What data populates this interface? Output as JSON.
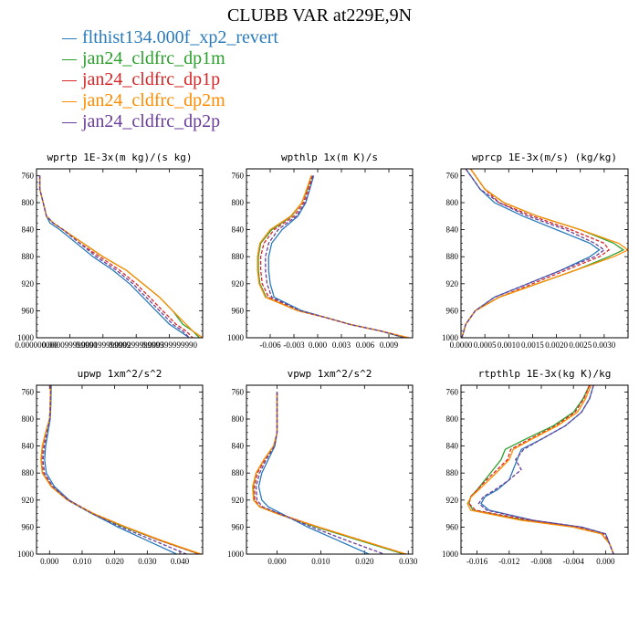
{
  "title": "CLUBB VAR at229E,9N",
  "colors": {
    "flthist": "#2b7bbb",
    "dp1m": "#2ca02c",
    "dp1p": "#d62728",
    "dp2m": "#ff8c00",
    "dp2p": "#6a3d9a"
  },
  "legend": [
    {
      "label": "flthist134.000f_xp2_revert",
      "color": "#2b7bbb"
    },
    {
      "label": "jan24_cldfrc_dp1m",
      "color": "#2ca02c"
    },
    {
      "label": "jan24_cldfrc_dp1p",
      "color": "#d62728"
    },
    {
      "label": "jan24_cldfrc_dp2m",
      "color": "#ff8c00"
    },
    {
      "label": "jan24_cldfrc_dp2p",
      "color": "#6a3d9a"
    }
  ],
  "chart_data": [
    {
      "type": "line",
      "title": "wprtp  1E-3x(m kg)/(s kg)",
      "xlim": [
        0.0,
        0.0005
      ],
      "ylim": [
        1000,
        750
      ],
      "y_ticks": [
        760,
        800,
        840,
        880,
        920,
        960,
        1000
      ],
      "x_ticks": [
        0.0,
        0.0001,
        0.0002,
        0.0003,
        0.0004
      ],
      "x_tick_labels": [
        "0.000000000",
        "0.000099999990",
        "0.000199999999",
        "0.000299999999",
        "0.000399999990"
      ],
      "y": [
        760,
        780,
        800,
        820,
        830,
        840,
        860,
        880,
        900,
        920,
        940,
        960,
        980,
        990,
        1000
      ],
      "series": [
        {
          "name": "flthist134.000f_xp2_revert",
          "color": "#2b7bbb",
          "dash": "solid",
          "x": [
            1e-05,
            1e-05,
            2e-05,
            3e-05,
            4e-05,
            7e-05,
            0.00012,
            0.00017,
            0.00023,
            0.00028,
            0.00032,
            0.00036,
            0.0004,
            0.00043,
            0.00046
          ]
        },
        {
          "name": "jan24_cldfrc_dp1m",
          "color": "#2ca02c",
          "dash": "solid",
          "x": [
            1e-05,
            1e-05,
            2e-05,
            3e-05,
            5e-05,
            8e-05,
            0.00014,
            0.0002,
            0.00027,
            0.00032,
            0.00037,
            0.00041,
            0.00044,
            0.00047,
            0.00049
          ]
        },
        {
          "name": "jan24_cldfrc_dp1p",
          "color": "#d62728",
          "dash": "dashed",
          "x": [
            1e-05,
            1e-05,
            2e-05,
            3e-05,
            5e-05,
            8e-05,
            0.00013,
            0.00019,
            0.00025,
            0.0003,
            0.00034,
            0.00038,
            0.00042,
            0.00045,
            0.00047
          ]
        },
        {
          "name": "jan24_cldfrc_dp2m",
          "color": "#ff8c00",
          "dash": "solid",
          "x": [
            1e-05,
            1e-05,
            2e-05,
            3e-05,
            5e-05,
            8e-05,
            0.00014,
            0.0002,
            0.00027,
            0.00032,
            0.00037,
            0.00041,
            0.00045,
            0.00047,
            0.0005
          ]
        },
        {
          "name": "jan24_cldfrc_dp2p",
          "color": "#6a3d9a",
          "dash": "dashed",
          "x": [
            1e-05,
            1e-05,
            2e-05,
            3e-05,
            5e-05,
            8e-05,
            0.00013,
            0.00018,
            0.00024,
            0.00029,
            0.00033,
            0.00037,
            0.00041,
            0.00044,
            0.00046
          ]
        }
      ]
    },
    {
      "type": "line",
      "title": "wpthlp  1x(m K)/s",
      "xlim": [
        -0.009,
        0.012
      ],
      "ylim": [
        1000,
        750
      ],
      "y_ticks": [
        760,
        800,
        840,
        880,
        920,
        960,
        1000
      ],
      "x_ticks": [
        -0.006,
        -0.003,
        0.0,
        0.003,
        0.006,
        0.009
      ],
      "x_tick_labels": [
        "-0.006",
        "-0.003",
        "0.000",
        "0.003",
        "0.006",
        "0.009"
      ],
      "y": [
        760,
        780,
        800,
        820,
        840,
        860,
        880,
        900,
        920,
        940,
        960,
        970,
        980,
        990,
        1000
      ],
      "series": [
        {
          "name": "flthist134.000f_xp2_revert",
          "color": "#2b7bbb",
          "dash": "solid",
          "x": [
            -0.0005,
            -0.001,
            -0.0015,
            -0.0025,
            -0.0045,
            -0.0058,
            -0.0062,
            -0.0062,
            -0.006,
            -0.0055,
            -0.002,
            0.001,
            0.004,
            0.008,
            0.011
          ]
        },
        {
          "name": "jan24_cldfrc_dp1m",
          "color": "#2ca02c",
          "dash": "solid",
          "x": [
            -0.0008,
            -0.0013,
            -0.002,
            -0.0033,
            -0.0058,
            -0.0072,
            -0.0075,
            -0.0075,
            -0.0073,
            -0.0065,
            -0.0025,
            0.001,
            0.004,
            0.008,
            0.011
          ]
        },
        {
          "name": "jan24_cldfrc_dp1p",
          "color": "#d62728",
          "dash": "dashed",
          "x": [
            -0.0007,
            -0.0012,
            -0.0018,
            -0.003,
            -0.0055,
            -0.0068,
            -0.0072,
            -0.0072,
            -0.007,
            -0.0062,
            -0.0024,
            0.001,
            0.004,
            0.008,
            0.0115
          ]
        },
        {
          "name": "jan24_cldfrc_dp2m",
          "color": "#ff8c00",
          "dash": "solid",
          "x": [
            -0.0008,
            -0.0014,
            -0.002,
            -0.0034,
            -0.006,
            -0.0073,
            -0.0076,
            -0.0076,
            -0.0074,
            -0.0066,
            -0.0025,
            0.001,
            0.004,
            0.008,
            0.0115
          ]
        },
        {
          "name": "jan24_cldfrc_dp2p",
          "color": "#6a3d9a",
          "dash": "dashed",
          "x": [
            -0.0006,
            -0.001,
            -0.0016,
            -0.0027,
            -0.005,
            -0.0062,
            -0.0066,
            -0.0066,
            -0.0064,
            -0.0058,
            -0.0022,
            0.001,
            0.004,
            0.008,
            0.011
          ]
        }
      ]
    },
    {
      "type": "line",
      "title": "wprcp  1E-3x(m/s) (kg/kg)",
      "xlim": [
        0.0,
        0.0035
      ],
      "ylim": [
        1000,
        750
      ],
      "y_ticks": [
        760,
        800,
        840,
        880,
        920,
        960,
        1000
      ],
      "x_ticks": [
        0.0,
        0.0005,
        0.001,
        0.0015,
        0.002,
        0.0025,
        0.003
      ],
      "x_tick_labels": [
        "0.0000",
        "0.0005",
        "0.0010",
        "0.0015",
        "0.0020",
        "0.0025",
        "0.0030"
      ],
      "y": [
        750,
        760,
        780,
        800,
        820,
        840,
        860,
        870,
        880,
        900,
        920,
        940,
        960,
        980,
        1000
      ],
      "series": [
        {
          "name": "flthist134.000f_xp2_revert",
          "color": "#2b7bbb",
          "dash": "solid",
          "x": [
            0.0001,
            0.0002,
            0.0004,
            0.0007,
            0.0013,
            0.002,
            0.0027,
            0.0029,
            0.0027,
            0.0021,
            0.0014,
            0.0007,
            0.0003,
            0.0001,
            2e-05
          ]
        },
        {
          "name": "jan24_cldfrc_dp1m",
          "color": "#2ca02c",
          "dash": "solid",
          "x": [
            0.0002,
            0.0003,
            0.0005,
            0.0009,
            0.0016,
            0.0025,
            0.0032,
            0.0034,
            0.0031,
            0.0024,
            0.0016,
            0.0008,
            0.0003,
            0.0001,
            2e-05
          ]
        },
        {
          "name": "jan24_cldfrc_dp1p",
          "color": "#d62728",
          "dash": "dashed",
          "x": [
            0.0002,
            0.0003,
            0.0005,
            0.0008,
            0.0015,
            0.0023,
            0.003,
            0.0031,
            0.0029,
            0.0022,
            0.0015,
            0.0008,
            0.0003,
            0.0001,
            2e-05
          ]
        },
        {
          "name": "jan24_cldfrc_dp2m",
          "color": "#ff8c00",
          "dash": "solid",
          "x": [
            0.0002,
            0.0003,
            0.0005,
            0.0009,
            0.0016,
            0.0025,
            0.0033,
            0.0035,
            0.0032,
            0.0024,
            0.0016,
            0.0008,
            0.0003,
            0.0001,
            2e-05
          ]
        },
        {
          "name": "jan24_cldfrc_dp2p",
          "color": "#6a3d9a",
          "dash": "dashed",
          "x": [
            0.0001,
            0.0002,
            0.0004,
            0.0008,
            0.0014,
            0.0022,
            0.0028,
            0.003,
            0.0028,
            0.0021,
            0.0014,
            0.0007,
            0.0003,
            0.0001,
            2e-05
          ]
        }
      ]
    },
    {
      "type": "line",
      "title": "upwp  1xm^2/s^2",
      "xlim": [
        -0.004,
        0.047
      ],
      "ylim": [
        1000,
        750
      ],
      "y_ticks": [
        760,
        800,
        840,
        880,
        920,
        960,
        1000
      ],
      "x_ticks": [
        0.0,
        0.01,
        0.02,
        0.03,
        0.04
      ],
      "x_tick_labels": [
        "0.000",
        "0.010",
        "0.020",
        "0.030",
        "0.040"
      ],
      "y": [
        750,
        780,
        800,
        820,
        840,
        860,
        880,
        900,
        920,
        940,
        960,
        980,
        1000
      ],
      "series": [
        {
          "name": "flthist134.000f_xp2_revert",
          "color": "#2b7bbb",
          "dash": "solid",
          "x": [
            0.0005,
            0.0004,
            0.0002,
            -0.0005,
            -0.0012,
            -0.0015,
            -0.001,
            0.0015,
            0.006,
            0.013,
            0.021,
            0.03,
            0.039
          ]
        },
        {
          "name": "jan24_cldfrc_dp1m",
          "color": "#2ca02c",
          "dash": "solid",
          "x": [
            0.0003,
            0.0002,
            0.0,
            -0.0012,
            -0.0022,
            -0.0026,
            -0.0022,
            0.0005,
            0.0055,
            0.013,
            0.023,
            0.034,
            0.046
          ]
        },
        {
          "name": "jan24_cldfrc_dp1p",
          "color": "#d62728",
          "dash": "dashed",
          "x": [
            0.0003,
            0.0002,
            0.0,
            -0.001,
            -0.002,
            -0.0024,
            -0.002,
            0.0008,
            0.0058,
            0.0135,
            0.0235,
            0.034,
            0.046
          ]
        },
        {
          "name": "jan24_cldfrc_dp2m",
          "color": "#ff8c00",
          "dash": "solid",
          "x": [
            0.0003,
            0.0002,
            0.0,
            -0.0012,
            -0.0022,
            -0.0026,
            -0.0022,
            0.0005,
            0.0055,
            0.0135,
            0.0235,
            0.0345,
            0.0465
          ]
        },
        {
          "name": "jan24_cldfrc_dp2p",
          "color": "#6a3d9a",
          "dash": "dashed",
          "x": [
            0.0004,
            0.0003,
            0.0001,
            -0.0008,
            -0.0016,
            -0.002,
            -0.0016,
            0.001,
            0.0057,
            0.013,
            0.022,
            0.032,
            0.042
          ]
        }
      ]
    },
    {
      "type": "line",
      "title": "vpwp  1xm^2/s^2",
      "xlim": [
        -0.007,
        0.031
      ],
      "ylim": [
        1000,
        750
      ],
      "y_ticks": [
        760,
        800,
        840,
        880,
        920,
        960,
        1000
      ],
      "x_ticks": [
        0.0,
        0.01,
        0.02,
        0.03
      ],
      "x_tick_labels": [
        "0.000",
        "0.010",
        "0.020",
        "0.030"
      ],
      "y": [
        760,
        780,
        800,
        820,
        840,
        860,
        880,
        900,
        920,
        930,
        940,
        960,
        980,
        1000
      ],
      "series": [
        {
          "name": "flthist134.000f_xp2_revert",
          "color": "#2b7bbb",
          "dash": "solid",
          "x": [
            0.0,
            0.0,
            0.0,
            0.0,
            -0.0005,
            -0.002,
            -0.0035,
            -0.0042,
            -0.0035,
            -0.002,
            0.001,
            0.007,
            0.014,
            0.021
          ]
        },
        {
          "name": "jan24_cldfrc_dp1m",
          "color": "#2ca02c",
          "dash": "solid",
          "x": [
            0.0,
            0.0,
            0.0,
            0.0,
            -0.0008,
            -0.003,
            -0.0048,
            -0.0055,
            -0.0053,
            -0.004,
            0.0,
            0.009,
            0.019,
            0.029
          ]
        },
        {
          "name": "jan24_cldfrc_dp1p",
          "color": "#d62728",
          "dash": "dashed",
          "x": [
            0.0,
            0.0,
            0.0,
            0.0,
            -0.0007,
            -0.0028,
            -0.0045,
            -0.0052,
            -0.0051,
            -0.0038,
            0.0003,
            0.0095,
            0.0195,
            0.0295
          ]
        },
        {
          "name": "jan24_cldfrc_dp2m",
          "color": "#ff8c00",
          "dash": "solid",
          "x": [
            0.0,
            0.0,
            0.0,
            0.0,
            -0.0008,
            -0.003,
            -0.0048,
            -0.0056,
            -0.0054,
            -0.004,
            0.0,
            0.0095,
            0.0195,
            0.0295
          ]
        },
        {
          "name": "jan24_cldfrc_dp2p",
          "color": "#6a3d9a",
          "dash": "dashed",
          "x": [
            0.0,
            0.0,
            0.0,
            0.0,
            -0.0006,
            -0.0025,
            -0.004,
            -0.0048,
            -0.0046,
            -0.0033,
            0.0005,
            0.008,
            0.016,
            0.0245
          ]
        }
      ]
    },
    {
      "type": "line",
      "title": "rtpthlp  1E-3x(kg K)/kg",
      "xlim": [
        -0.018,
        0.0028
      ],
      "ylim": [
        1000,
        750
      ],
      "y_ticks": [
        760,
        800,
        840,
        880,
        920,
        960,
        1000
      ],
      "x_ticks": [
        -0.016,
        -0.012,
        -0.008,
        -0.004,
        0.0
      ],
      "x_tick_labels": [
        "-0.016",
        "-0.012",
        "-0.008",
        "-0.004",
        "0.000"
      ],
      "y": [
        750,
        770,
        790,
        810,
        830,
        845,
        860,
        875,
        890,
        905,
        915,
        925,
        935,
        950,
        960,
        970,
        985,
        1000
      ],
      "series": [
        {
          "name": "flthist134.000f_xp2_revert",
          "color": "#2b7bbb",
          "dash": "solid",
          "x": [
            -0.0015,
            -0.002,
            -0.003,
            -0.005,
            -0.008,
            -0.0105,
            -0.011,
            -0.0115,
            -0.012,
            -0.0135,
            -0.015,
            -0.0155,
            -0.0145,
            -0.009,
            -0.003,
            0.0,
            0.0005,
            0.001
          ]
        },
        {
          "name": "jan24_cldfrc_dp1m",
          "color": "#2ca02c",
          "dash": "solid",
          "x": [
            -0.002,
            -0.0028,
            -0.004,
            -0.0065,
            -0.01,
            -0.0125,
            -0.013,
            -0.014,
            -0.015,
            -0.016,
            -0.0168,
            -0.017,
            -0.0165,
            -0.01,
            -0.004,
            -0.0005,
            0.0005,
            0.001
          ]
        },
        {
          "name": "jan24_cldfrc_dp1p",
          "color": "#d62728",
          "dash": "dashed",
          "x": [
            -0.002,
            -0.0027,
            -0.0038,
            -0.0062,
            -0.0095,
            -0.0118,
            -0.0122,
            -0.0135,
            -0.0148,
            -0.016,
            -0.0168,
            -0.017,
            -0.0162,
            -0.0095,
            -0.0035,
            -0.0003,
            0.0005,
            0.001
          ]
        },
        {
          "name": "jan24_cldfrc_dp2m",
          "color": "#ff8c00",
          "dash": "solid",
          "x": [
            -0.0018,
            -0.0025,
            -0.0035,
            -0.006,
            -0.0092,
            -0.0115,
            -0.012,
            -0.0132,
            -0.0145,
            -0.0158,
            -0.0167,
            -0.0172,
            -0.0168,
            -0.0105,
            -0.004,
            -0.0005,
            0.0005,
            0.001
          ]
        },
        {
          "name": "jan24_cldfrc_dp2p",
          "color": "#6a3d9a",
          "dash": "dashed",
          "x": [
            -0.0015,
            -0.002,
            -0.003,
            -0.005,
            -0.008,
            -0.0102,
            -0.0112,
            -0.0105,
            -0.012,
            -0.0138,
            -0.0152,
            -0.0158,
            -0.0148,
            -0.009,
            -0.003,
            0.0,
            0.0005,
            0.001
          ]
        }
      ]
    }
  ]
}
